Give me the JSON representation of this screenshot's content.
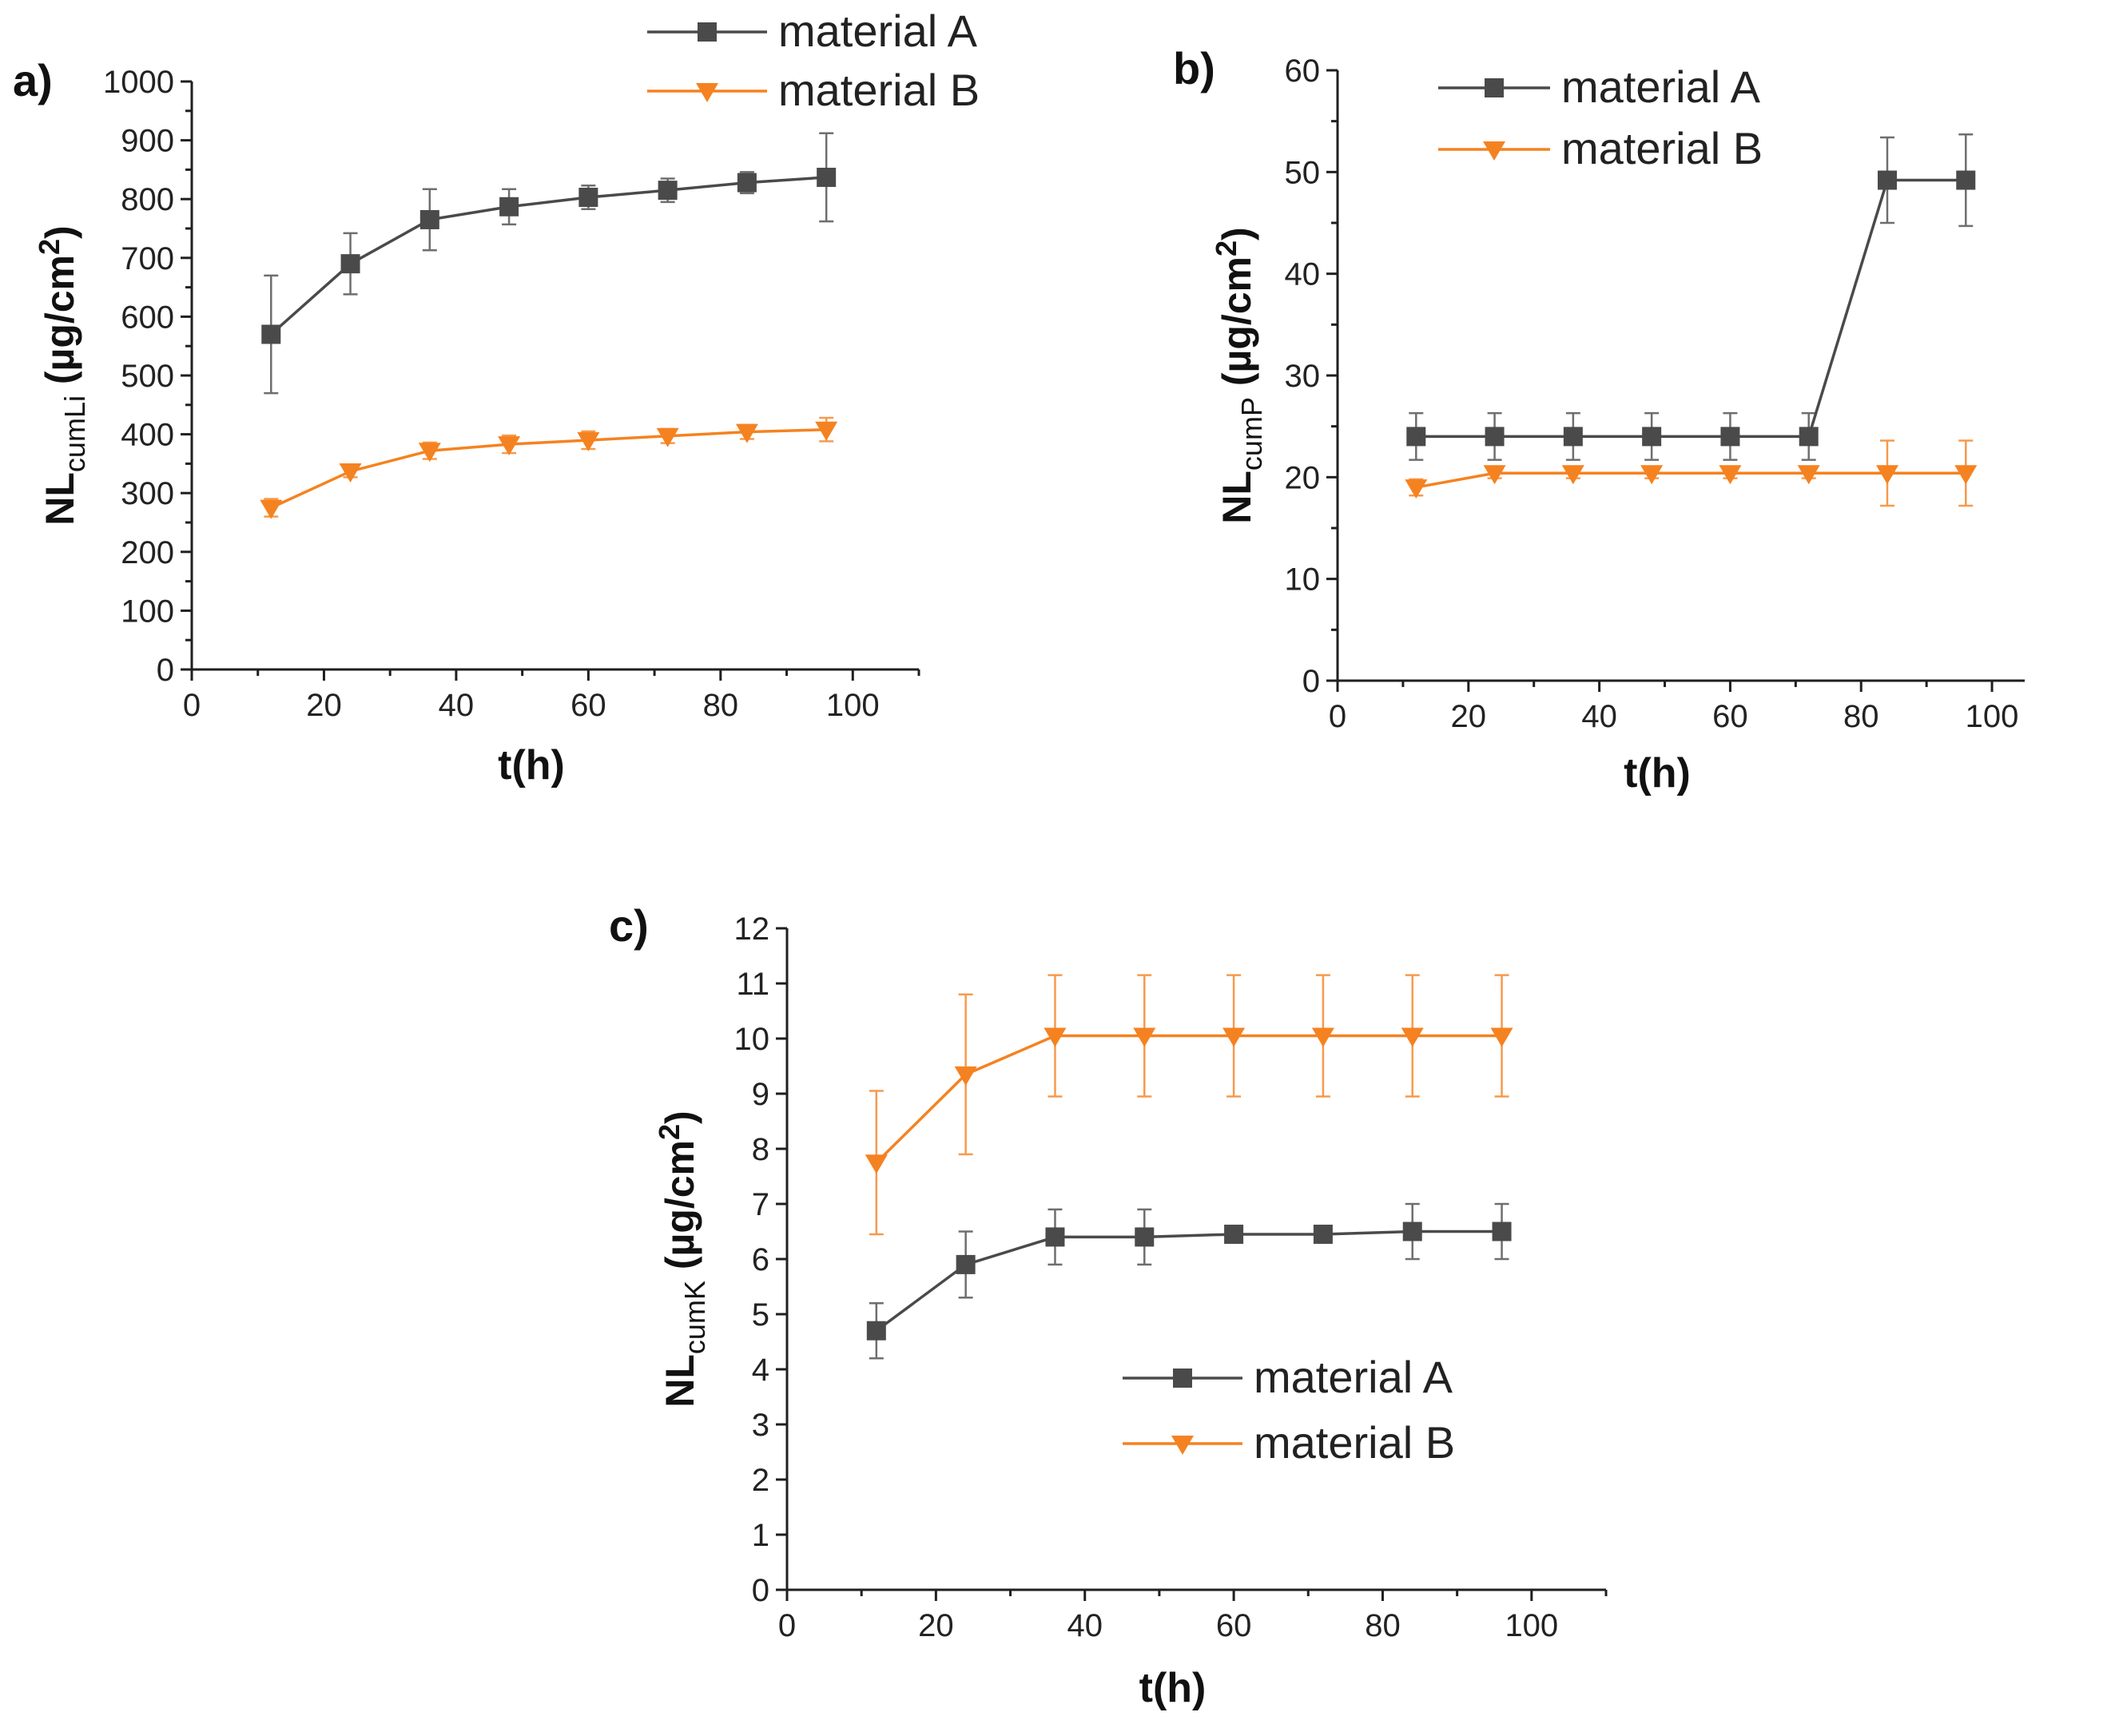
{
  "colors": {
    "material_a": "#4a4a4a",
    "material_b": "#f58220",
    "axis": "#1f1f1f"
  },
  "chart_data": [
    {
      "panel": "a)",
      "type": "line",
      "xlabel": "t(h)",
      "ylabel": {
        "main": "NL",
        "sub": "cumLi",
        "unit": " (µg/cm",
        "sup": "2",
        "close": ")"
      },
      "xlim": [
        0,
        110
      ],
      "ylim": [
        0,
        1000
      ],
      "xticks": [
        0,
        20,
        40,
        60,
        80,
        100
      ],
      "yticks": [
        0,
        100,
        200,
        300,
        400,
        500,
        600,
        700,
        800,
        900,
        1000
      ],
      "legend_position": "top",
      "series": [
        {
          "name": "material A",
          "marker": "square",
          "color": "#4a4a4a",
          "x": [
            12,
            24,
            36,
            48,
            60,
            72,
            84,
            96
          ],
          "y": [
            570,
            690,
            765,
            787,
            803,
            815,
            828,
            837
          ],
          "err": [
            100,
            52,
            52,
            30,
            20,
            20,
            18,
            75
          ]
        },
        {
          "name": "material B",
          "marker": "triangle-down",
          "color": "#f58220",
          "x": [
            12,
            24,
            36,
            48,
            60,
            72,
            84,
            96
          ],
          "y": [
            275,
            337,
            372,
            383,
            390,
            397,
            404,
            408
          ],
          "err": [
            15,
            10,
            14,
            15,
            15,
            12,
            12,
            20
          ]
        }
      ]
    },
    {
      "panel": "b)",
      "type": "line",
      "xlabel": "t(h)",
      "ylabel": {
        "main": "NL",
        "sub": "cumP",
        "unit": " (µg/cm",
        "sup": "2",
        "close": ")"
      },
      "xlim": [
        0,
        105
      ],
      "ylim": [
        0,
        60
      ],
      "xticks": [
        0,
        20,
        40,
        60,
        80,
        100
      ],
      "yticks": [
        0,
        10,
        20,
        30,
        40,
        50,
        60
      ],
      "legend_position": "top-left",
      "series": [
        {
          "name": "material A",
          "marker": "square",
          "color": "#4a4a4a",
          "x": [
            12,
            24,
            36,
            48,
            60,
            72,
            84,
            96
          ],
          "y": [
            24,
            24,
            24,
            24,
            24,
            24,
            49.2,
            49.2
          ],
          "err": [
            2.3,
            2.3,
            2.3,
            2.3,
            2.3,
            2.3,
            4.2,
            4.5
          ]
        },
        {
          "name": "material B",
          "marker": "triangle-down",
          "color": "#f58220",
          "x": [
            12,
            24,
            36,
            48,
            60,
            72,
            84,
            96
          ],
          "y": [
            19,
            20.4,
            20.4,
            20.4,
            20.4,
            20.4,
            20.4,
            20.4
          ],
          "err": [
            0.8,
            0.5,
            0.5,
            0.5,
            0.5,
            0.5,
            3.2,
            3.2
          ]
        }
      ]
    },
    {
      "panel": "c)",
      "type": "line",
      "xlabel": "t(h)",
      "ylabel": {
        "main": "NL",
        "sub": "cumK",
        "unit": " (µg/cm",
        "sup": "2",
        "close": ")"
      },
      "xlim": [
        0,
        110
      ],
      "ylim": [
        0,
        12
      ],
      "xticks": [
        0,
        20,
        40,
        60,
        80,
        100
      ],
      "yticks": [
        0,
        1,
        2,
        3,
        4,
        5,
        6,
        7,
        8,
        9,
        10,
        11,
        12
      ],
      "legend_position": "bottom-right",
      "series": [
        {
          "name": "material A",
          "marker": "square",
          "color": "#4a4a4a",
          "x": [
            12,
            24,
            36,
            48,
            60,
            72,
            84,
            96
          ],
          "y": [
            4.7,
            5.9,
            6.4,
            6.4,
            6.45,
            6.45,
            6.5,
            6.5
          ],
          "err": [
            0.5,
            0.6,
            0.5,
            0.5,
            0.1,
            0.1,
            0.5,
            0.5
          ]
        },
        {
          "name": "material B",
          "marker": "triangle-down",
          "color": "#f58220",
          "x": [
            12,
            24,
            36,
            48,
            60,
            72,
            84,
            96
          ],
          "y": [
            7.75,
            9.35,
            10.05,
            10.05,
            10.05,
            10.05,
            10.05,
            10.05
          ],
          "err": [
            1.3,
            1.45,
            1.1,
            1.1,
            1.1,
            1.1,
            1.1,
            1.1
          ]
        }
      ]
    }
  ]
}
